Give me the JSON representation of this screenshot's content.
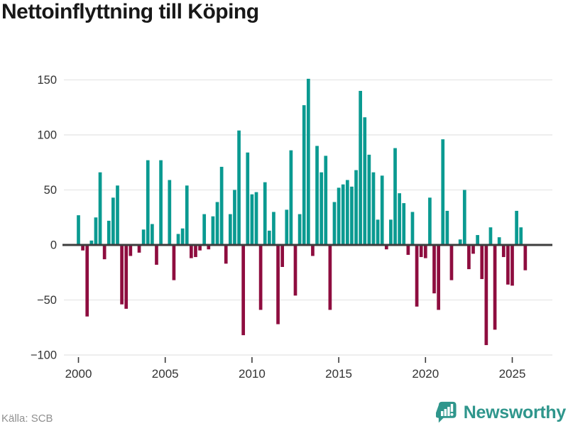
{
  "title": "Nettoinflyttning till Köping",
  "source": "Källa: SCB",
  "brand": {
    "name": "Newsworthy"
  },
  "colors": {
    "positive": "#0a9a91",
    "negative": "#8e0d3f",
    "zero_axis": "#3d3d3d",
    "grid": "#e9e9e9",
    "tick_label": "#333333",
    "brand_teal": "#2f968c"
  },
  "chart_data": {
    "type": "bar",
    "title": "Nettoinflyttning till Köping",
    "frequency": "quarterly",
    "start_year": 2000,
    "periods_per_year": 4,
    "values": [
      27,
      -5,
      -65,
      4,
      25,
      66,
      -13,
      22,
      43,
      54,
      -54,
      -58,
      -10,
      0,
      -7,
      14,
      77,
      19,
      -18,
      77,
      0,
      59,
      -32,
      10,
      15,
      54,
      -12,
      -11,
      -5,
      28,
      -4,
      26,
      39,
      71,
      -17,
      28,
      50,
      104,
      -82,
      84,
      46,
      48,
      -59,
      57,
      13,
      30,
      -72,
      -20,
      32,
      86,
      -46,
      28,
      127,
      151,
      -10,
      90,
      66,
      81,
      -59,
      39,
      52,
      55,
      59,
      53,
      68,
      140,
      116,
      82,
      66,
      23,
      63,
      -4,
      23,
      88,
      47,
      38,
      -9,
      30,
      -56,
      -11,
      -12,
      43,
      -44,
      -59,
      96,
      31,
      -32,
      0,
      5,
      50,
      -22,
      -8,
      9,
      -31,
      -91,
      16,
      -77,
      7,
      -11,
      -36,
      -37,
      31,
      16,
      -23
    ],
    "xticks": [
      2000,
      2005,
      2010,
      2015,
      2020,
      2025
    ],
    "yticks": [
      -100,
      -50,
      0,
      50,
      100,
      150
    ],
    "ylim": [
      -103,
      167
    ],
    "grid": true,
    "legend": false
  }
}
